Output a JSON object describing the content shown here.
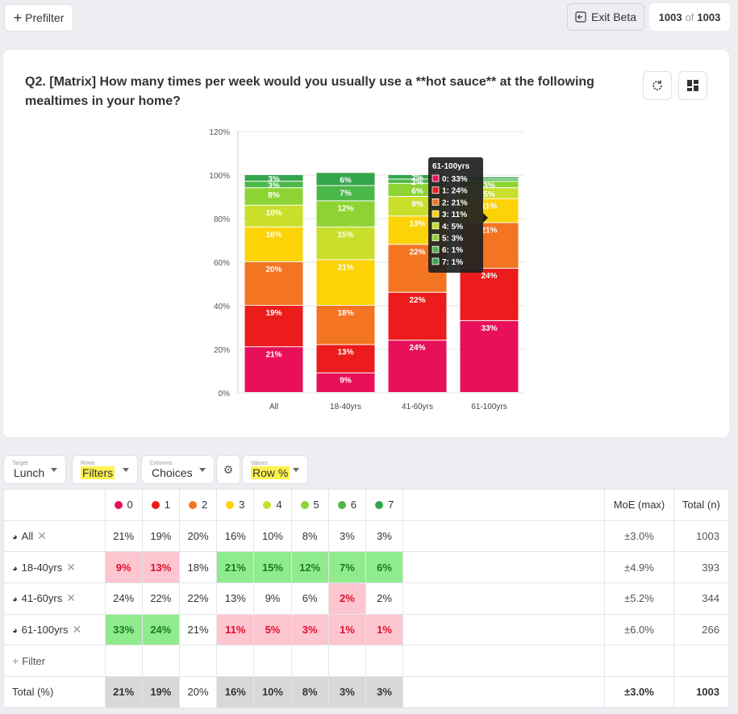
{
  "topbar": {
    "prefilter_label": "Prefilter",
    "exit_beta_label": "Exit Beta",
    "count_value": "1003",
    "count_of": "of",
    "count_total": "1003"
  },
  "question": {
    "title": "Q2. [Matrix] How many times per week would you usually use a **hot sauce** at the following mealtimes in your home?"
  },
  "chart_data": {
    "type": "bar",
    "stacked": true,
    "categories": [
      "All",
      "18-40yrs",
      "41-60yrs",
      "61-100yrs"
    ],
    "ylim": [
      0,
      120
    ],
    "yticks": [
      "0%",
      "20%",
      "40%",
      "60%",
      "80%",
      "100%",
      "120%"
    ],
    "series": [
      {
        "name": "0",
        "color": "#e8105a",
        "values": [
          21,
          9,
          24,
          33
        ]
      },
      {
        "name": "1",
        "color": "#ec1c1c",
        "values": [
          19,
          13,
          22,
          24
        ]
      },
      {
        "name": "2",
        "color": "#f37421",
        "values": [
          20,
          18,
          22,
          21
        ]
      },
      {
        "name": "3",
        "color": "#fcd307",
        "values": [
          16,
          21,
          13,
          11
        ]
      },
      {
        "name": "4",
        "color": "#c9df2c",
        "values": [
          10,
          15,
          9,
          5
        ]
      },
      {
        "name": "5",
        "color": "#8ed334",
        "values": [
          8,
          12,
          6,
          3
        ]
      },
      {
        "name": "6",
        "color": "#4cb84a",
        "values": [
          3,
          7,
          2,
          1
        ]
      },
      {
        "name": "7",
        "color": "#35a54b",
        "values": [
          3,
          6,
          2,
          1
        ]
      }
    ],
    "tooltip": {
      "title": "61-100yrs",
      "lines": [
        "0: 33%",
        "1: 24%",
        "2: 21%",
        "3: 11%",
        "4: 5%",
        "5: 3%",
        "6: 1%",
        "7: 1%"
      ]
    }
  },
  "controls": {
    "target_small": "Target",
    "target_value": "Lunch",
    "rows_small": "Rows",
    "rows_value": "Filters",
    "columns_small": "Columns",
    "columns_value": "Choices",
    "values_small": "Values",
    "values_value": "Row %"
  },
  "table": {
    "columns": [
      "0",
      "1",
      "2",
      "3",
      "4",
      "5",
      "6",
      "7"
    ],
    "moe_header": "MoE (max)",
    "total_header": "Total (n)",
    "rows": [
      {
        "label": "All",
        "cells": [
          "21%",
          "19%",
          "20%",
          "16%",
          "10%",
          "8%",
          "3%",
          "3%"
        ],
        "moe": "±3.0%",
        "n": "1003"
      },
      {
        "label": "18-40yrs",
        "cells": [
          "9%",
          "13%",
          "18%",
          "21%",
          "15%",
          "12%",
          "7%",
          "6%"
        ],
        "moe": "±4.9%",
        "n": "393"
      },
      {
        "label": "41-60yrs",
        "cells": [
          "24%",
          "22%",
          "22%",
          "13%",
          "9%",
          "6%",
          "2%",
          "2%"
        ],
        "moe": "±5.2%",
        "n": "344"
      },
      {
        "label": "61-100yrs",
        "cells": [
          "33%",
          "24%",
          "21%",
          "11%",
          "5%",
          "3%",
          "1%",
          "1%"
        ],
        "moe": "±6.0%",
        "n": "266"
      }
    ],
    "add_filter_label": "Filter",
    "total_row": {
      "label": "Total (%)",
      "cells": [
        "21%",
        "19%",
        "20%",
        "16%",
        "10%",
        "8%",
        "3%",
        "3%"
      ],
      "moe": "±3.0%",
      "n": "1003"
    }
  }
}
